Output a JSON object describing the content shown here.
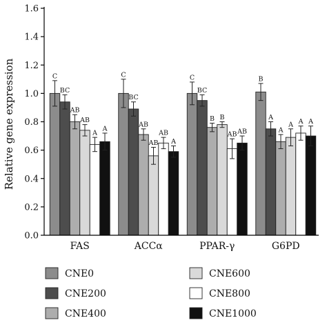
{
  "chart_data": {
    "type": "bar",
    "title": "",
    "xlabel": "",
    "ylabel": "Relative gene expression",
    "ylim": [
      0,
      1.6
    ],
    "yticks": [
      "0.0",
      "0.2",
      "0.4",
      "0.6",
      "0.8",
      "1.0",
      "1.2",
      "1.4",
      "1.6"
    ],
    "categories": [
      "FAS",
      "ACCα",
      "PPAR-γ",
      "G6PD"
    ],
    "grid": false,
    "legend_position": "bottom",
    "series": [
      {
        "name": "CNE0",
        "color": "#8c8c8c",
        "values": [
          1.0,
          1.0,
          1.0,
          1.01
        ],
        "errors": [
          0.09,
          0.1,
          0.08,
          0.06
        ],
        "labels": [
          "C",
          "C",
          "C",
          "B"
        ]
      },
      {
        "name": "CNE200",
        "color": "#4d4d4d",
        "values": [
          0.94,
          0.89,
          0.95,
          0.75
        ],
        "errors": [
          0.05,
          0.05,
          0.04,
          0.05
        ],
        "labels": [
          "BC",
          "BC",
          "BC",
          "A"
        ]
      },
      {
        "name": "CNE400",
        "color": "#adadad",
        "values": [
          0.8,
          0.71,
          0.76,
          0.66
        ],
        "errors": [
          0.05,
          0.04,
          0.03,
          0.05
        ],
        "labels": [
          "AB",
          "AB",
          "B",
          "A"
        ]
      },
      {
        "name": "CNE600",
        "color": "#d9d9d9",
        "values": [
          0.74,
          0.56,
          0.78,
          0.69
        ],
        "errors": [
          0.04,
          0.06,
          0.02,
          0.06
        ],
        "labels": [
          "AB",
          "AB",
          "B",
          "A"
        ]
      },
      {
        "name": "CNE800",
        "color": "#ffffff",
        "values": [
          0.64,
          0.65,
          0.61,
          0.72
        ],
        "errors": [
          0.05,
          0.04,
          0.07,
          0.05
        ],
        "labels": [
          "A",
          "AB",
          "AB",
          "A"
        ]
      },
      {
        "name": "CNE1000",
        "color": "#111111",
        "values": [
          0.66,
          0.59,
          0.65,
          0.7
        ],
        "errors": [
          0.06,
          0.04,
          0.05,
          0.07
        ],
        "labels": [
          "A",
          "A",
          "AB",
          "A"
        ]
      }
    ]
  }
}
